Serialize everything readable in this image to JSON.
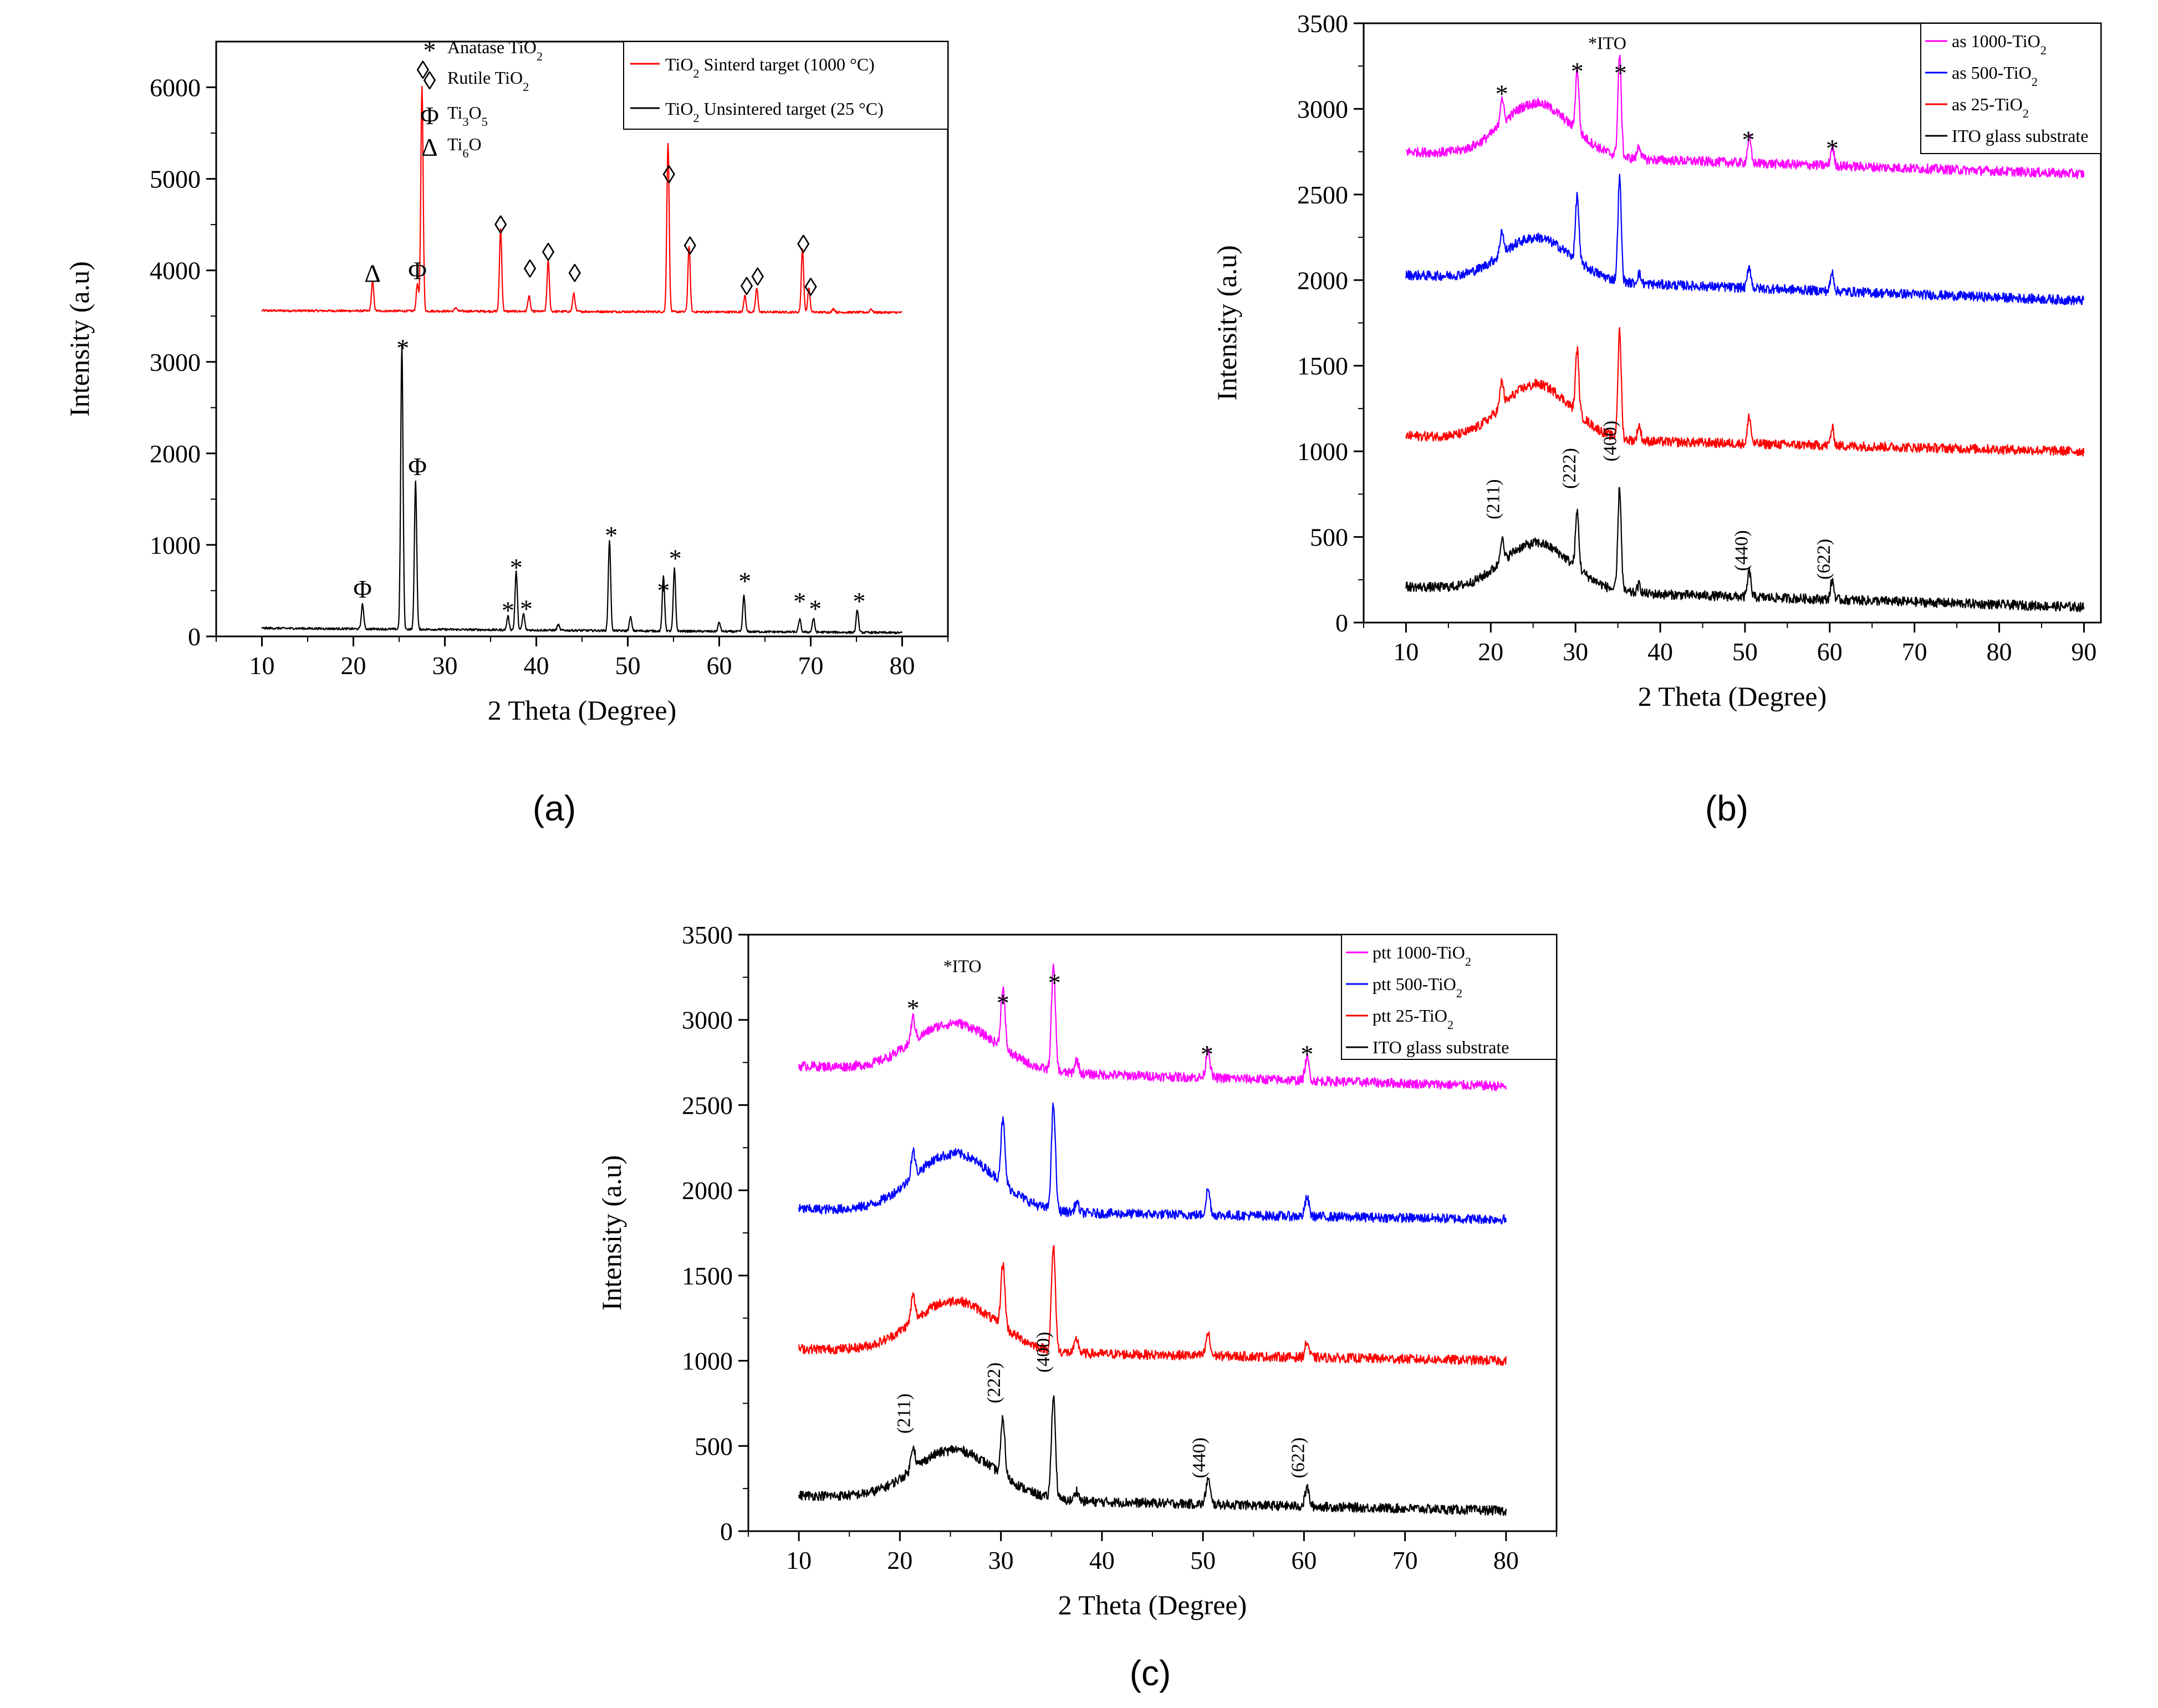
{
  "figure_title": "",
  "colors": {
    "red": "#ff0000",
    "black": "#000000",
    "blue": "#0000ff",
    "magenta": "#ff00ff"
  },
  "chart_data": [
    {
      "panel": "(a)",
      "type": "line",
      "xlabel": "2 Theta (Degree)",
      "ylabel": "Intensity (a.u)",
      "xlim": [
        5,
        85
      ],
      "ylim": [
        0,
        6500
      ],
      "xticks": [
        10,
        20,
        30,
        40,
        50,
        60,
        70,
        80
      ],
      "yticks": [
        0,
        1000,
        2000,
        3000,
        4000,
        5000,
        6000
      ],
      "phase_legend": [
        {
          "symbol": "*",
          "label": "Anatase TiO2"
        },
        {
          "symbol": "◊",
          "label": "Rutile TiO2"
        },
        {
          "symbol": "Φ",
          "label": "Ti3O5"
        },
        {
          "symbol": "Δ",
          "label": "Ti6O"
        }
      ],
      "legend": [
        {
          "name": "TiO2 Sinterd target (1000 °C)",
          "color": "#ff0000"
        },
        {
          "name": "TiO2 Unsintered target (25 °C)",
          "color": "#000000"
        }
      ],
      "series": [
        {
          "name": "TiO2 Sinterd target (1000 °C)",
          "color": "#ff0000",
          "x_range": [
            10,
            80
          ],
          "baseline": [
            3560,
            3540
          ],
          "peaks": [
            [
              22.1,
              320
            ],
            [
              27.0,
              300
            ],
            [
              27.5,
              2450
            ],
            [
              31.2,
              40
            ],
            [
              36.1,
              900
            ],
            [
              39.2,
              170
            ],
            [
              41.3,
              550
            ],
            [
              44.1,
              200
            ],
            [
              54.4,
              1850
            ],
            [
              56.7,
              720
            ],
            [
              62.8,
              180
            ],
            [
              64.1,
              260
            ],
            [
              69.1,
              700
            ],
            [
              69.8,
              260
            ],
            [
              72.5,
              40
            ],
            [
              76.6,
              40
            ]
          ]
        },
        {
          "name": "TiO2 Unsintered target (25 °C)",
          "color": "#000000",
          "x_range": [
            10,
            80
          ],
          "baseline": [
            90,
            40
          ],
          "peaks": [
            [
              21.0,
              270
            ],
            [
              25.3,
              3100
            ],
            [
              26.8,
              1620
            ],
            [
              36.9,
              150
            ],
            [
              37.8,
              640
            ],
            [
              38.6,
              180
            ],
            [
              42.4,
              60
            ],
            [
              48.0,
              990
            ],
            [
              50.3,
              150
            ],
            [
              53.9,
              600
            ],
            [
              55.1,
              680
            ],
            [
              60.0,
              100
            ],
            [
              62.7,
              400
            ],
            [
              68.8,
              140
            ],
            [
              70.3,
              150
            ],
            [
              75.1,
              250
            ]
          ]
        }
      ],
      "annotations": [
        {
          "x": 22.1,
          "y": 3970,
          "text": "Δ"
        },
        {
          "x": 27.0,
          "y": 4000,
          "text": "Φ"
        },
        {
          "x": 27.6,
          "y": 6190,
          "text": "◊"
        },
        {
          "x": 36.1,
          "y": 4500,
          "text": "◊"
        },
        {
          "x": 39.3,
          "y": 4020,
          "text": "◊"
        },
        {
          "x": 41.3,
          "y": 4200,
          "text": "◊"
        },
        {
          "x": 44.2,
          "y": 3970,
          "text": "◊"
        },
        {
          "x": 54.5,
          "y": 5050,
          "text": "◊"
        },
        {
          "x": 56.8,
          "y": 4270,
          "text": "◊"
        },
        {
          "x": 63.0,
          "y": 3830,
          "text": "◊"
        },
        {
          "x": 64.2,
          "y": 3930,
          "text": "◊"
        },
        {
          "x": 69.2,
          "y": 4290,
          "text": "◊"
        },
        {
          "x": 70.0,
          "y": 3820,
          "text": "◊"
        },
        {
          "x": 21.0,
          "y": 520,
          "text": "Φ"
        },
        {
          "x": 25.4,
          "y": 3230,
          "text": "*"
        },
        {
          "x": 27.0,
          "y": 1860,
          "text": "Φ"
        },
        {
          "x": 36.9,
          "y": 360,
          "text": "*"
        },
        {
          "x": 37.8,
          "y": 830,
          "text": "*"
        },
        {
          "x": 38.9,
          "y": 380,
          "text": "*"
        },
        {
          "x": 48.2,
          "y": 1180,
          "text": "*"
        },
        {
          "x": 53.9,
          "y": 580,
          "text": "*"
        },
        {
          "x": 55.2,
          "y": 930,
          "text": "*"
        },
        {
          "x": 62.8,
          "y": 680,
          "text": "*"
        },
        {
          "x": 68.8,
          "y": 460,
          "text": "*"
        },
        {
          "x": 70.5,
          "y": 380,
          "text": "*"
        },
        {
          "x": 75.3,
          "y": 460,
          "text": "*"
        }
      ]
    },
    {
      "panel": "(b)",
      "type": "line",
      "xlabel": "2 Theta (Degree)",
      "ylabel": "Intensity (a.u)",
      "xlim": [
        5,
        92
      ],
      "ylim": [
        0,
        3500
      ],
      "xticks": [
        10,
        20,
        30,
        40,
        50,
        60,
        70,
        80,
        90
      ],
      "yticks": [
        0,
        500,
        1000,
        1500,
        2000,
        2500,
        3000,
        3500
      ],
      "inner_label": "*ITO",
      "legend": [
        {
          "name": "as 1000-TiO2",
          "color": "#ff00ff"
        },
        {
          "name": "as 500-TiO2",
          "color": "#0000ff"
        },
        {
          "name": "as 25-TiO2",
          "color": "#ff0000"
        },
        {
          "name": "ITO glass substrate",
          "color": "#000000"
        }
      ],
      "series": [
        {
          "name": "as 1000-TiO2",
          "color": "#ff00ff",
          "x_range": [
            10,
            90
          ],
          "baseline": [
            2750,
            2620
          ],
          "hump": 300,
          "peaks": [
            [
              21.3,
              160
            ],
            [
              30.2,
              360
            ],
            [
              35.2,
              590
            ],
            [
              37.5,
              80
            ],
            [
              50.5,
              150
            ],
            [
              60.3,
              110
            ]
          ]
        },
        {
          "name": "as 500-TiO2",
          "color": "#0000ff",
          "x_range": [
            10,
            90
          ],
          "baseline": [
            2030,
            1880
          ],
          "hump": 240,
          "peaks": [
            [
              21.3,
              140
            ],
            [
              30.2,
              380
            ],
            [
              35.2,
              600
            ],
            [
              37.5,
              60
            ],
            [
              50.5,
              130
            ],
            [
              60.3,
              110
            ]
          ]
        },
        {
          "name": "as 25-TiO2",
          "color": "#ff0000",
          "x_range": [
            10,
            90
          ],
          "baseline": [
            1090,
            1000
          ],
          "hump": 310,
          "peaks": [
            [
              21.3,
              150
            ],
            [
              30.2,
              370
            ],
            [
              35.2,
              620
            ],
            [
              37.5,
              90
            ],
            [
              50.5,
              160
            ],
            [
              60.3,
              100
            ]
          ]
        },
        {
          "name": "ITO glass substrate",
          "color": "#000000",
          "x_range": [
            10,
            90
          ],
          "baseline": [
            210,
            90
          ],
          "hump": 270,
          "peaks": [
            [
              21.3,
              140
            ],
            [
              30.2,
              330
            ],
            [
              35.2,
              600
            ],
            [
              37.5,
              50
            ],
            [
              50.5,
              150
            ],
            [
              60.3,
              110
            ]
          ]
        }
      ],
      "annotations": [
        {
          "x": 21.3,
          "y": 3130,
          "text": "*"
        },
        {
          "x": 30.2,
          "y": 3260,
          "text": "*"
        },
        {
          "x": 35.3,
          "y": 3250,
          "text": "*"
        },
        {
          "x": 50.4,
          "y": 2860,
          "text": "*"
        },
        {
          "x": 60.3,
          "y": 2810,
          "text": "*"
        }
      ],
      "rot_labels": [
        {
          "x": 21.0,
          "y": 720,
          "text": "(211)"
        },
        {
          "x": 30.0,
          "y": 900,
          "text": "(222)"
        },
        {
          "x": 34.8,
          "y": 1060,
          "text": "(400)"
        },
        {
          "x": 50.3,
          "y": 420,
          "text": "(440)"
        },
        {
          "x": 60.0,
          "y": 370,
          "text": "(622)"
        }
      ]
    },
    {
      "panel": "(c)",
      "type": "line",
      "xlabel": "2 Theta (Degree)",
      "ylabel": "Intensity (a.u)",
      "xlim": [
        5,
        85
      ],
      "ylim": [
        0,
        3500
      ],
      "xticks": [
        10,
        20,
        30,
        40,
        50,
        60,
        70,
        80
      ],
      "yticks": [
        0,
        500,
        1000,
        1500,
        2000,
        2500,
        3000,
        3500
      ],
      "inner_label": "*ITO",
      "legend": [
        {
          "name": "ptt 1000-TiO2",
          "color": "#ff00ff"
        },
        {
          "name": "ptt 500-TiO2",
          "color": "#0000ff"
        },
        {
          "name": "ptt 25-TiO2",
          "color": "#ff0000"
        },
        {
          "name": "ITO glass substrate",
          "color": "#000000"
        }
      ],
      "series": [
        {
          "name": "ptt 1000-TiO2",
          "color": "#ff00ff",
          "x_range": [
            10,
            80
          ],
          "baseline": [
            2730,
            2610
          ],
          "hump": 270,
          "peaks": [
            [
              21.3,
              140
            ],
            [
              30.2,
              360
            ],
            [
              35.2,
              610
            ],
            [
              37.5,
              80
            ],
            [
              50.5,
              170
            ],
            [
              60.3,
              130
            ]
          ]
        },
        {
          "name": "ptt 500-TiO2",
          "color": "#0000ff",
          "x_range": [
            10,
            80
          ],
          "baseline": [
            1890,
            1830
          ],
          "hump": 330,
          "peaks": [
            [
              21.3,
              150
            ],
            [
              30.2,
              370
            ],
            [
              35.2,
              620
            ],
            [
              37.5,
              60
            ],
            [
              50.5,
              150
            ],
            [
              60.3,
              110
            ]
          ]
        },
        {
          "name": "ptt 25-TiO2",
          "color": "#ff0000",
          "x_range": [
            10,
            80
          ],
          "baseline": [
            1070,
            1000
          ],
          "hump": 290,
          "peaks": [
            [
              21.3,
              150
            ],
            [
              30.2,
              370
            ],
            [
              35.2,
              610
            ],
            [
              37.5,
              80
            ],
            [
              50.5,
              130
            ],
            [
              60.3,
              90
            ]
          ]
        },
        {
          "name": "ITO glass substrate",
          "color": "#000000",
          "x_range": [
            10,
            80
          ],
          "baseline": [
            210,
            120
          ],
          "hump": 280,
          "peaks": [
            [
              21.3,
              140
            ],
            [
              30.2,
              330
            ],
            [
              35.2,
              610
            ],
            [
              37.5,
              60
            ],
            [
              50.5,
              150
            ],
            [
              60.3,
              110
            ]
          ]
        }
      ],
      "annotations": [
        {
          "x": 21.3,
          "y": 3110,
          "text": "*"
        },
        {
          "x": 30.2,
          "y": 3140,
          "text": "*"
        },
        {
          "x": 35.3,
          "y": 3260,
          "text": "*"
        },
        {
          "x": 50.4,
          "y": 2840,
          "text": "*"
        },
        {
          "x": 60.3,
          "y": 2840,
          "text": "*"
        }
      ],
      "rot_labels": [
        {
          "x": 21.0,
          "y": 690,
          "text": "(211)"
        },
        {
          "x": 29.9,
          "y": 870,
          "text": "(222)"
        },
        {
          "x": 34.8,
          "y": 1050,
          "text": "(400)"
        },
        {
          "x": 50.2,
          "y": 430,
          "text": "(440)"
        },
        {
          "x": 60.0,
          "y": 430,
          "text": "(622)"
        }
      ]
    }
  ]
}
